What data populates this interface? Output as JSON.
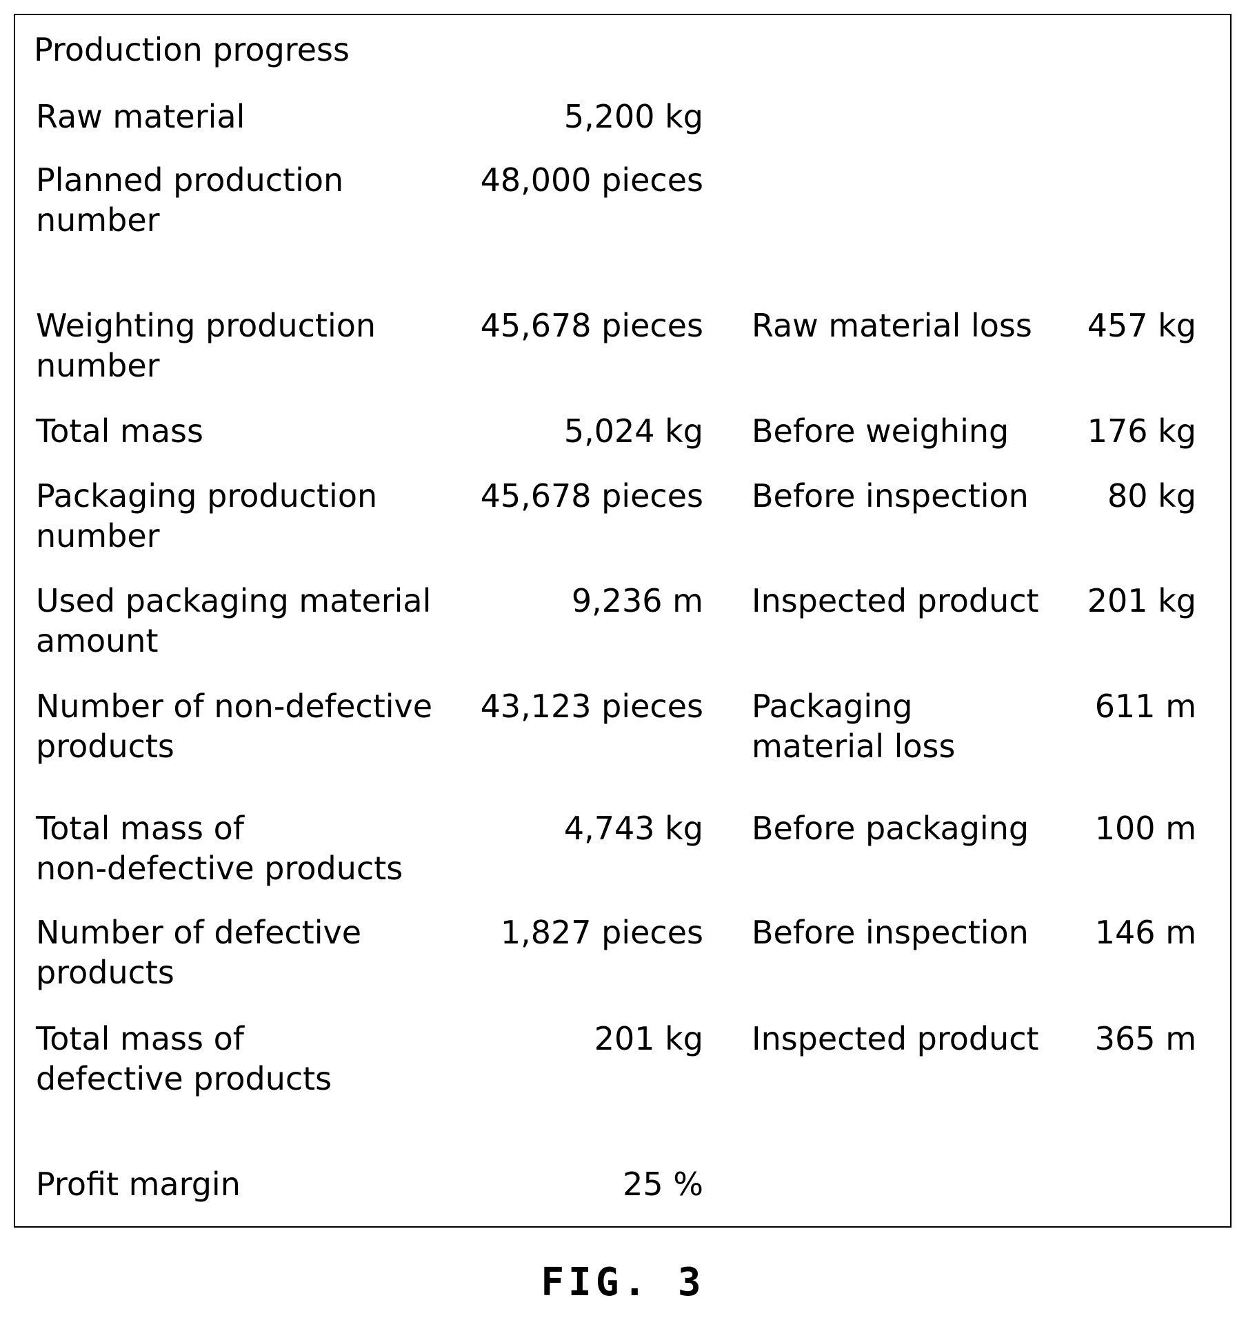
{
  "panel": {
    "title": "Production progress"
  },
  "left": [
    {
      "label": "Raw material",
      "value": "5,200 kg"
    },
    {
      "label": "Planned production\nnumber",
      "value": "48,000 pieces"
    },
    {
      "label": "Weighting production\nnumber",
      "value": "45,678 pieces"
    },
    {
      "label": "Total mass",
      "value": "5,024 kg"
    },
    {
      "label": "Packaging production\nnumber",
      "value": "45,678 pieces"
    },
    {
      "label": "Used packaging material\namount",
      "value": "9,236 m"
    },
    {
      "label": "Number of non-defective\nproducts",
      "value": "43,123 pieces"
    },
    {
      "label": "Total mass of\nnon-defective products",
      "value": "4,743 kg"
    },
    {
      "label": "Number of defective\nproducts",
      "value": "1,827 pieces"
    },
    {
      "label": "Total mass of\ndefective products",
      "value": "201 kg"
    },
    {
      "label": "Profit margin",
      "value": "25 %"
    }
  ],
  "right": [
    {
      "label": "Raw material loss",
      "value": "457 kg"
    },
    {
      "label": "Before weighing",
      "value": "176 kg"
    },
    {
      "label": "Before inspection",
      "value": "80 kg"
    },
    {
      "label": "Inspected product",
      "value": "201 kg"
    },
    {
      "label": "Packaging\nmaterial loss",
      "value": "611 m"
    },
    {
      "label": "Before packaging",
      "value": "100 m"
    },
    {
      "label": "Before inspection",
      "value": "146 m"
    },
    {
      "label": "Inspected product",
      "value": "365 m"
    }
  ],
  "figure_caption": "FIG. 3"
}
